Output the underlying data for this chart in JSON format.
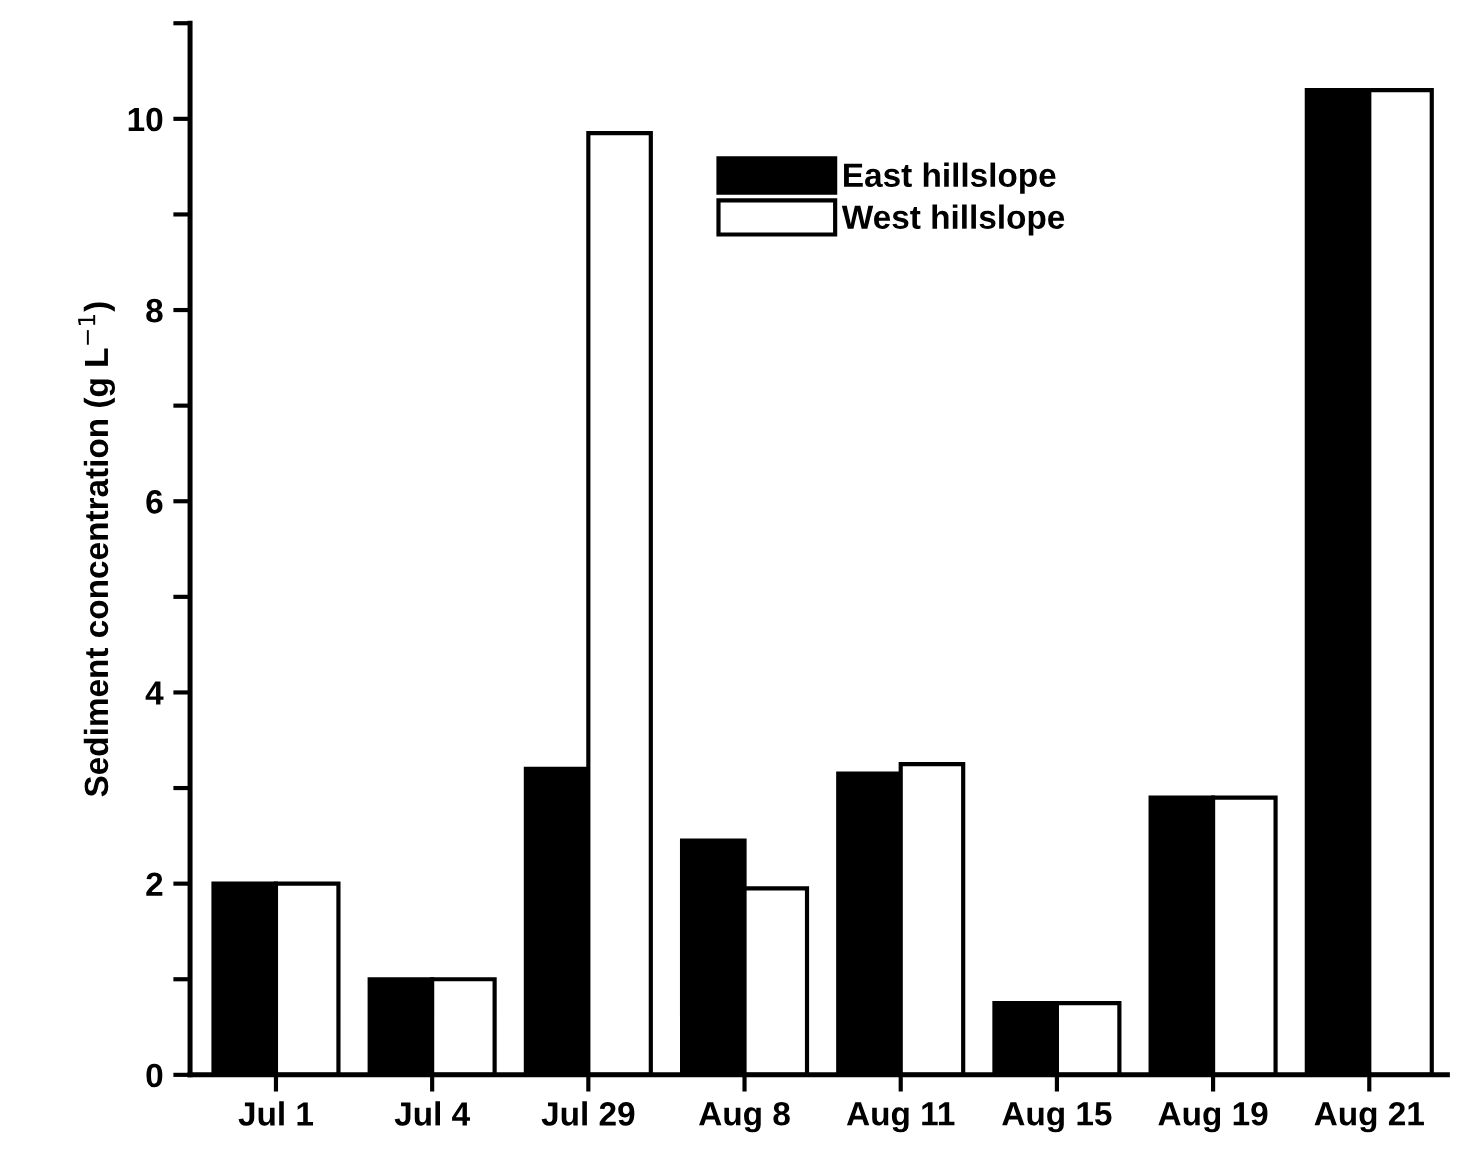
{
  "chart_data": {
    "type": "bar",
    "ylabel": "Sediment concentration (g L$^{−1}$)",
    "categories": [
      "Jul 1",
      "Jul 4",
      "Jul 29",
      "Aug 8",
      "Aug 11",
      "Aug 15",
      "Aug 19",
      "Aug 21"
    ],
    "series": [
      {
        "name": "East hillslope",
        "color": "#000000",
        "values": [
          2.0,
          1.0,
          3.2,
          2.45,
          3.15,
          0.75,
          2.9,
          10.3
        ]
      },
      {
        "name": "West hillslope",
        "color": "#ffffff",
        "values": [
          2.0,
          1.0,
          9.85,
          1.95,
          3.25,
          0.75,
          2.9,
          10.3
        ]
      }
    ],
    "ylim": [
      0,
      11
    ],
    "yticks": [
      0,
      {
        "value": 1,
        "label": null
      },
      2,
      {
        "value": 3,
        "label": null
      },
      4,
      {
        "value": 5,
        "label": null
      },
      6,
      {
        "value": 7,
        "label": null
      },
      8,
      {
        "value": 9,
        "label": null
      },
      10,
      {
        "value": 11,
        "label": null
      }
    ],
    "grid": false,
    "legend": "top right"
  }
}
